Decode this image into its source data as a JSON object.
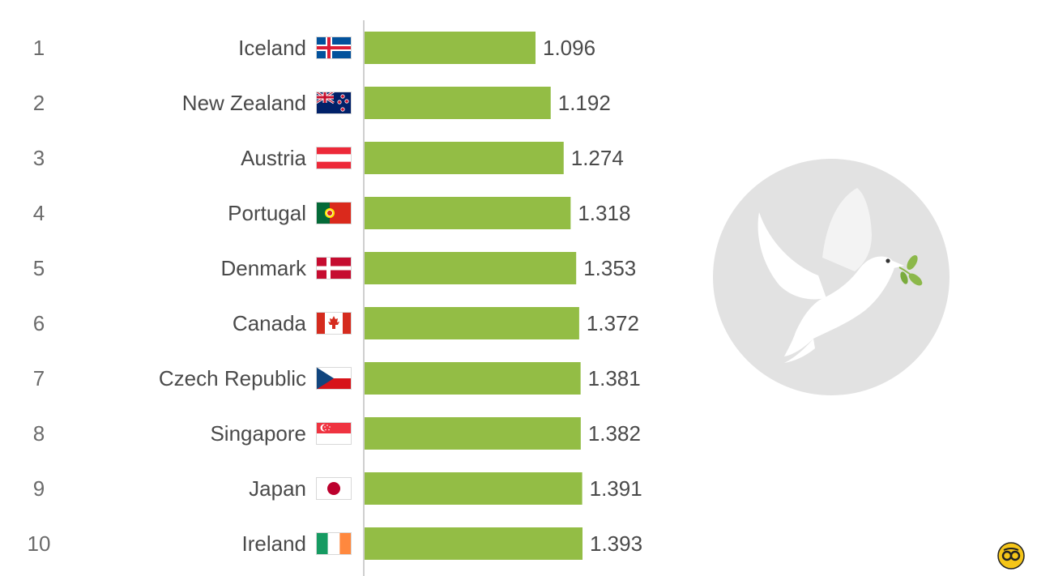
{
  "chart_data": {
    "type": "bar",
    "orientation": "horizontal",
    "ranks": [
      "1",
      "2",
      "3",
      "4",
      "5",
      "6",
      "7",
      "8",
      "9",
      "10"
    ],
    "categories": [
      "Iceland",
      "New Zealand",
      "Austria",
      "Portugal",
      "Denmark",
      "Canada",
      "Czech Republic",
      "Singapore",
      "Japan",
      "Ireland"
    ],
    "values": [
      1.096,
      1.192,
      1.274,
      1.318,
      1.353,
      1.372,
      1.381,
      1.382,
      1.391,
      1.393
    ],
    "value_labels": [
      "1.096",
      "1.192",
      "1.274",
      "1.318",
      "1.353",
      "1.372",
      "1.381",
      "1.382",
      "1.391",
      "1.393"
    ],
    "bar_color": "#93bd45",
    "title": "",
    "xlabel": "",
    "ylabel": "",
    "grid": false,
    "legend": "none"
  },
  "flags": [
    "iceland-flag-icon",
    "new-zealand-flag-icon",
    "austria-flag-icon",
    "portugal-flag-icon",
    "denmark-flag-icon",
    "canada-flag-icon",
    "czech-republic-flag-icon",
    "singapore-flag-icon",
    "japan-flag-icon",
    "ireland-flag-icon"
  ],
  "decorations": {
    "illustration": "dove-with-olive-branch-icon",
    "badge": "watermark-logo-icon",
    "circle_color": "#e2e2e2",
    "badge_color": "#f5c518"
  }
}
